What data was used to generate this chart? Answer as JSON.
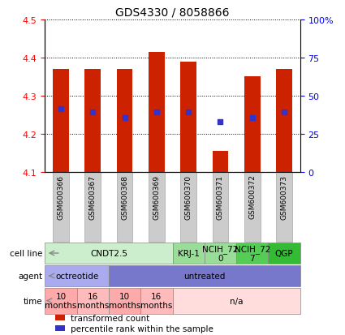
{
  "title": "GDS4330 / 8058866",
  "samples": [
    "GSM600366",
    "GSM600367",
    "GSM600368",
    "GSM600369",
    "GSM600370",
    "GSM600371",
    "GSM600372",
    "GSM600373"
  ],
  "bar_tops": [
    4.37,
    4.37,
    4.37,
    4.415,
    4.39,
    4.155,
    4.35,
    4.37
  ],
  "bar_base": 4.1,
  "percentile_vals": [
    4.265,
    4.258,
    4.243,
    4.258,
    4.258,
    4.232,
    4.243,
    4.258
  ],
  "bar_color": "#cc2200",
  "blue_color": "#3333cc",
  "ylim": [
    4.1,
    4.5
  ],
  "yticks": [
    4.1,
    4.2,
    4.3,
    4.4,
    4.5
  ],
  "right_yticks_pct": [
    0,
    25,
    50,
    75,
    100
  ],
  "right_ylabels": [
    "0",
    "25",
    "50",
    "75",
    "100%"
  ],
  "cell_line_groups": [
    {
      "label": "CNDT2.5",
      "start": 0,
      "end": 4,
      "color": "#cceecc"
    },
    {
      "label": "KRJ-1",
      "start": 4,
      "end": 5,
      "color": "#99dd99"
    },
    {
      "label": "NCIH_72\n0",
      "start": 5,
      "end": 6,
      "color": "#99dd99"
    },
    {
      "label": "NCIH_72\n7",
      "start": 6,
      "end": 7,
      "color": "#55cc55"
    },
    {
      "label": "QGP",
      "start": 7,
      "end": 8,
      "color": "#33bb33"
    }
  ],
  "agent_groups": [
    {
      "label": "octreotide",
      "start": 0,
      "end": 2,
      "color": "#aaaaee"
    },
    {
      "label": "untreated",
      "start": 2,
      "end": 8,
      "color": "#7777cc"
    }
  ],
  "time_groups": [
    {
      "label": "10\nmonths",
      "start": 0,
      "end": 1,
      "color": "#ffaaaa"
    },
    {
      "label": "16\nmonths",
      "start": 1,
      "end": 2,
      "color": "#ffbbbb"
    },
    {
      "label": "10\nmonths",
      "start": 2,
      "end": 3,
      "color": "#ffaaaa"
    },
    {
      "label": "16\nmonths",
      "start": 3,
      "end": 4,
      "color": "#ffbbbb"
    },
    {
      "label": "n/a",
      "start": 4,
      "end": 8,
      "color": "#ffdddd"
    }
  ],
  "legend_items": [
    {
      "label": "transformed count",
      "color": "#cc2200"
    },
    {
      "label": "percentile rank within the sample",
      "color": "#3333cc"
    }
  ],
  "sample_box_color": "#cccccc",
  "bar_xlim": [
    -0.5,
    7.5
  ],
  "bar_width": 0.5
}
